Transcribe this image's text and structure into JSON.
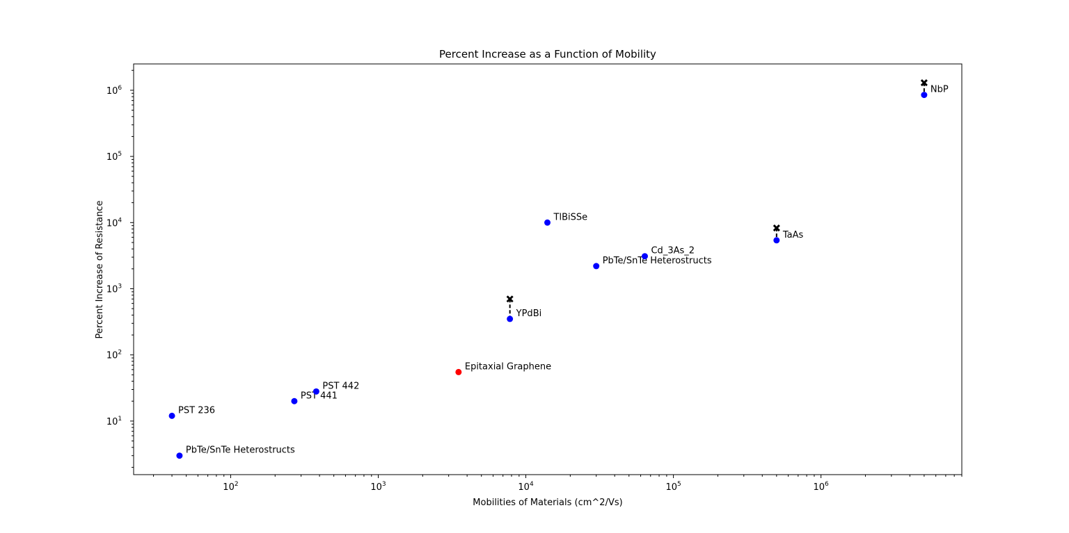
{
  "chart_data": {
    "type": "scatter",
    "title": "Percent Increase as a Function of Mobility",
    "xlabel": "Mobilities of Materials (cm^2/Vs)",
    "ylabel": "Percent Increase of Resistance",
    "xscale": "log",
    "yscale": "log",
    "xlim": [
      22,
      9000000
    ],
    "ylim": [
      1.55,
      2500000
    ],
    "grid": false,
    "x_ticks": [
      {
        "base": "10",
        "exp": "2",
        "value": 100
      },
      {
        "base": "10",
        "exp": "3",
        "value": 1000
      },
      {
        "base": "10",
        "exp": "4",
        "value": 10000
      },
      {
        "base": "10",
        "exp": "5",
        "value": 100000
      },
      {
        "base": "10",
        "exp": "6",
        "value": 1000000
      }
    ],
    "y_ticks": [
      {
        "base": "10",
        "exp": "1",
        "value": 10
      },
      {
        "base": "10",
        "exp": "2",
        "value": 100
      },
      {
        "base": "10",
        "exp": "3",
        "value": 1000
      },
      {
        "base": "10",
        "exp": "4",
        "value": 10000
      },
      {
        "base": "10",
        "exp": "5",
        "value": 100000
      },
      {
        "base": "10",
        "exp": "6",
        "value": 1000000
      }
    ],
    "colors": {
      "default": "#0000ff",
      "highlight": "#ff0000",
      "marker_x": "#000000"
    },
    "points": [
      {
        "label": "PST 236",
        "x": 40,
        "y": 12,
        "color": "#0000ff"
      },
      {
        "label": "PbTe/SnTe Heterostructs",
        "x": 45,
        "y": 3,
        "color": "#0000ff"
      },
      {
        "label": "PST 441",
        "x": 270,
        "y": 20,
        "color": "#0000ff"
      },
      {
        "label": "PST 442",
        "x": 380,
        "y": 28,
        "color": "#0000ff"
      },
      {
        "label": "Epitaxial Graphene",
        "x": 3500,
        "y": 55,
        "color": "#ff0000"
      },
      {
        "label": "YPdBi",
        "x": 7800,
        "y": 350,
        "color": "#0000ff",
        "upper": 700
      },
      {
        "label": "TlBiSSe",
        "x": 14000,
        "y": 10000,
        "color": "#0000ff"
      },
      {
        "label": "PbTe/SnTe Heterostructs",
        "x": 30000,
        "y": 2200,
        "color": "#0000ff"
      },
      {
        "label": "Cd_3As_2",
        "x": 64000,
        "y": 3100,
        "color": "#0000ff"
      },
      {
        "label": "TaAs",
        "x": 500000,
        "y": 5400,
        "color": "#0000ff",
        "upper": 8300
      },
      {
        "label": "NbP",
        "x": 5000000,
        "y": 850000,
        "color": "#0000ff",
        "upper": 1300000
      }
    ]
  }
}
